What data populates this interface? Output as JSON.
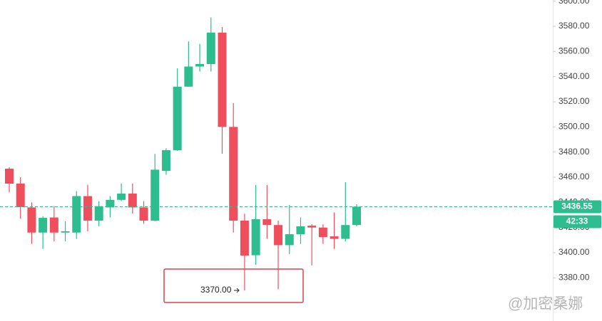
{
  "chart_data": {
    "type": "candlestick",
    "series": [
      {
        "up_color": "#2dbd8f",
        "down_color": "#ef4f5d",
        "open": [
          3466.8,
          3455,
          3436,
          3416,
          3428,
          3416,
          3416,
          3445,
          3425.5,
          3436,
          3442,
          3447,
          3436,
          3425.5,
          3465,
          3481.5,
          3532,
          3548,
          3550,
          3575,
          3500,
          3425.5,
          3398,
          3426.6,
          3422,
          3406,
          3414.7,
          3421.5,
          3420,
          3413,
          3411,
          3422
        ],
        "high": [
          3468,
          3460,
          3440,
          3429,
          3437,
          3425,
          3449,
          3454,
          3441,
          3445,
          3455,
          3455,
          3441,
          3478.6,
          3483,
          3546.6,
          3568,
          3566,
          3587,
          3579.4,
          3519,
          3431,
          3453.8,
          3453.8,
          3425.5,
          3438,
          3428,
          3422.6,
          3422.6,
          3432,
          3456,
          3438.5
        ],
        "low": [
          3448,
          3427,
          3407,
          3403,
          3409,
          3409,
          3411,
          3417,
          3421,
          3428,
          3441,
          3431,
          3423,
          3425,
          3462,
          3481,
          3532,
          3544,
          3544,
          3478.7,
          3416,
          3370,
          3390.4,
          3411,
          3371,
          3398.9,
          3407,
          3390,
          3407,
          3403,
          3409,
          3421
        ],
        "close": [
          3454.9,
          3436.2,
          3416,
          3427.7,
          3416,
          3417,
          3445,
          3425.5,
          3437,
          3442,
          3447,
          3436,
          3425.5,
          3466,
          3481.5,
          3532,
          3548,
          3550,
          3575,
          3500,
          3425.5,
          3397.7,
          3426.6,
          3422,
          3406,
          3414.7,
          3421,
          3420,
          3412.4,
          3411,
          3422,
          3436.55
        ]
      }
    ],
    "ylim": [
      3345.7,
      3600.9
    ],
    "yticks": [
      {
        "value": 3380,
        "label": "3380.00"
      },
      {
        "value": 3400,
        "label": "3400.00"
      },
      {
        "value": 3420,
        "label": "3420.00"
      },
      {
        "value": 3440,
        "label": "3440.00"
      },
      {
        "value": 3460,
        "label": "3460.00"
      },
      {
        "value": 3480,
        "label": "3480.00"
      },
      {
        "value": 3500,
        "label": "3500.00"
      },
      {
        "value": 3520,
        "label": "3520.00"
      },
      {
        "value": 3540,
        "label": "3540.00"
      },
      {
        "value": 3560,
        "label": "3560.00"
      },
      {
        "value": 3580,
        "label": "3580.00"
      },
      {
        "value": 3600,
        "label": "3600.00"
      }
    ],
    "last_price": 3436.55,
    "countdown": "42:33",
    "annotation": {
      "value": 3370,
      "label": "3370.00"
    },
    "watermark": "@加密桑娜"
  }
}
